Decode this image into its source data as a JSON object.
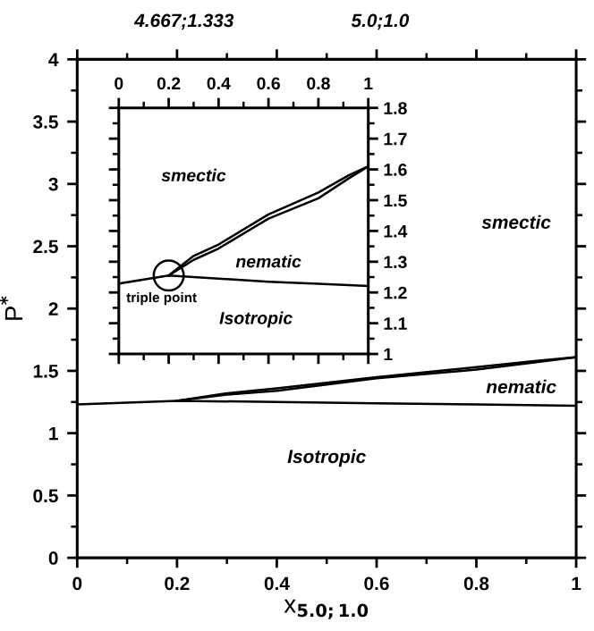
{
  "chart_data": [
    {
      "type": "line",
      "xlabel": "x$_{5.0;1.0}$",
      "ylabel": "P$^{*}$",
      "xlim": [
        0,
        1
      ],
      "ylim": [
        0,
        4
      ],
      "xticks": [
        0,
        0.2,
        0.4,
        0.6,
        0.8,
        1
      ],
      "yticks": [
        0,
        0.5,
        1,
        1.5,
        2,
        2.5,
        3,
        3.5,
        4
      ],
      "series": [
        {
          "color": "#000000",
          "x": [
            0,
            0.2,
            0.4,
            0.6,
            0.8,
            1
          ],
          "values": [
            1.23,
            1.26,
            1.25,
            1.24,
            1.23,
            1.22
          ]
        },
        {
          "color": "#000000",
          "x": [
            0.2,
            0.3,
            0.4,
            0.6,
            0.8,
            0.92,
            1
          ],
          "values": [
            1.26,
            1.32,
            1.36,
            1.45,
            1.53,
            1.58,
            1.61
          ]
        },
        {
          "color": "#000000",
          "x": [
            0.2,
            0.3,
            0.4,
            0.6,
            0.8,
            0.92,
            1
          ],
          "values": [
            1.26,
            1.31,
            1.34,
            1.44,
            1.51,
            1.57,
            1.61
          ]
        }
      ],
      "annotations": [
        "4.667;1.333",
        "5.0;1.0",
        "smectic",
        "nematic",
        "Isotropic"
      ]
    },
    {
      "type": "line",
      "xlim": [
        0,
        1
      ],
      "ylim": [
        1,
        1.8
      ],
      "xticks": [
        0,
        0.2,
        0.4,
        0.6,
        0.8,
        1
      ],
      "yticks": [
        1,
        1.1,
        1.2,
        1.3,
        1.4,
        1.5,
        1.6,
        1.7,
        1.8
      ],
      "series": [
        {
          "color": "#000000",
          "x": [
            0,
            0.2,
            0.4,
            0.6,
            0.8,
            1
          ],
          "values": [
            1.229,
            1.255,
            1.245,
            1.235,
            1.228,
            1.221
          ]
        },
        {
          "color": "#000000",
          "x": [
            0.2,
            0.3,
            0.4,
            0.6,
            0.8,
            0.92,
            1
          ],
          "values": [
            1.255,
            1.319,
            1.356,
            1.454,
            1.525,
            1.58,
            1.61
          ]
        },
        {
          "color": "#000000",
          "x": [
            0.2,
            0.3,
            0.4,
            0.6,
            0.8,
            0.92,
            1
          ],
          "values": [
            1.255,
            1.306,
            1.343,
            1.44,
            1.506,
            1.57,
            1.61
          ]
        }
      ],
      "annotations": [
        {
          "text": "triple point",
          "x": 0.2,
          "y": 1.255
        },
        "smectic",
        "nematic",
        "Isotropic"
      ]
    }
  ]
}
